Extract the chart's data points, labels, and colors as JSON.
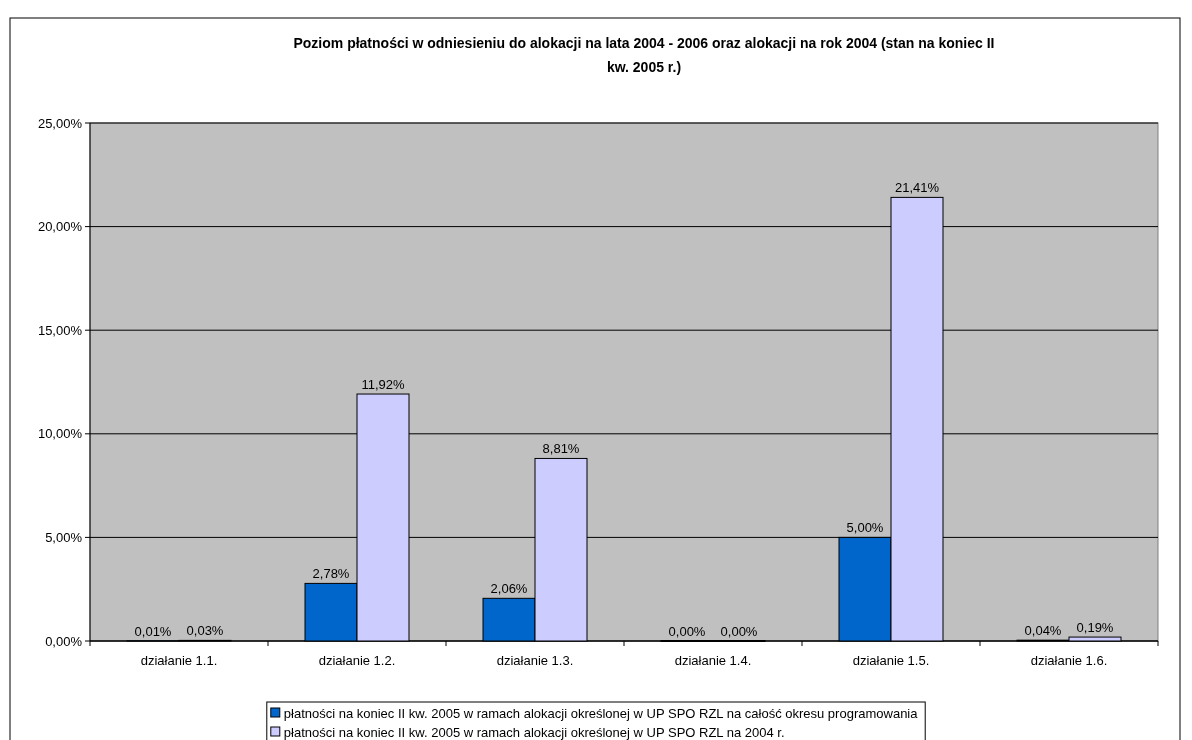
{
  "chart_data": {
    "type": "bar",
    "title": "Poziom płatności w odniesieniu do alokacji na lata 2004 - 2006 oraz alokacji na rok 2004 (stan na koniec II kw. 2005 r.)",
    "categories": [
      "działanie 1.1.",
      "działanie 1.2.",
      "działanie 1.3.",
      "działanie 1.4.",
      "działanie 1.5.",
      "działanie 1.6."
    ],
    "series": [
      {
        "name": "płatności na koniec II kw. 2005 w ramach alokacji określonej w UP SPO RZL na całość okresu programowania",
        "color": "#0066cc",
        "values": [
          0.01,
          2.78,
          2.06,
          0,
          5,
          0.04
        ],
        "value_labels": [
          "0,01%",
          "2,78%",
          "2,06%",
          "0,00%",
          "5,00%",
          "0,04%"
        ]
      },
      {
        "name": "płatności na koniec II kw. 2005 w ramach alokacji określonej w UP SPO RZL na 2004 r.",
        "color": "#ccccff",
        "values": [
          0.03,
          11.92,
          8.81,
          0,
          21.41,
          0.19
        ],
        "value_labels": [
          "0,03%",
          "11,92%",
          "8,81%",
          "0,00%",
          "21,41%",
          "0,19%"
        ]
      }
    ],
    "ylim": [
      0,
      25
    ],
    "yticks": [
      {
        "value": 0,
        "label": "0,00%"
      },
      {
        "value": 5,
        "label": "5,00%"
      },
      {
        "value": 10,
        "label": "10,00%"
      },
      {
        "value": 15,
        "label": "15,00%"
      },
      {
        "value": 20,
        "label": "20,00%"
      },
      {
        "value": 25,
        "label": "25,00%"
      }
    ],
    "grid": "y",
    "legend": "bottom"
  }
}
